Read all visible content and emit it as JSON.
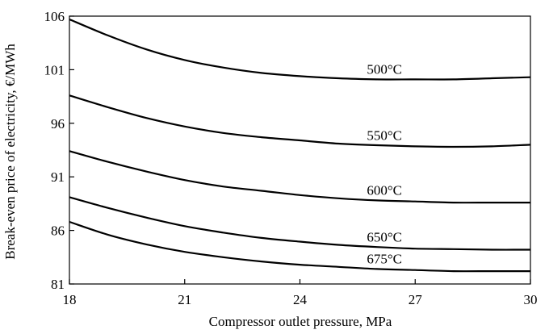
{
  "chart_data": {
    "type": "line",
    "xlabel": "Compressor outlet pressure, MPa",
    "ylabel": "Break-even price of electricity, €/MWh",
    "xlim": [
      18,
      30
    ],
    "ylim": [
      81,
      106
    ],
    "xticks": [
      18,
      21,
      24,
      27,
      30
    ],
    "yticks": [
      81,
      86,
      91,
      96,
      101,
      106
    ],
    "grid": false,
    "series": [
      {
        "name": "500°C",
        "x": [
          18,
          19,
          20,
          21,
          22,
          23,
          24,
          25,
          26,
          27,
          28,
          29,
          30
        ],
        "y": [
          105.7,
          104.2,
          102.9,
          101.9,
          101.2,
          100.7,
          100.4,
          100.2,
          100.1,
          100.1,
          100.1,
          100.2,
          100.3
        ]
      },
      {
        "name": "550°C",
        "x": [
          18,
          19,
          20,
          21,
          22,
          23,
          24,
          25,
          26,
          27,
          28,
          29,
          30
        ],
        "y": [
          98.6,
          97.5,
          96.5,
          95.7,
          95.1,
          94.7,
          94.4,
          94.1,
          93.95,
          93.85,
          93.8,
          93.85,
          94.0
        ]
      },
      {
        "name": "600°C",
        "x": [
          18,
          19,
          20,
          21,
          22,
          23,
          24,
          25,
          26,
          27,
          28,
          29,
          30
        ],
        "y": [
          93.4,
          92.4,
          91.5,
          90.7,
          90.1,
          89.7,
          89.3,
          89.0,
          88.8,
          88.7,
          88.6,
          88.6,
          88.6
        ]
      },
      {
        "name": "650°C",
        "x": [
          18,
          19,
          20,
          21,
          22,
          23,
          24,
          25,
          26,
          27,
          28,
          29,
          30
        ],
        "y": [
          89.1,
          88.1,
          87.2,
          86.4,
          85.8,
          85.3,
          84.95,
          84.65,
          84.45,
          84.3,
          84.25,
          84.2,
          84.2
        ]
      },
      {
        "name": "675°C",
        "x": [
          18,
          19,
          20,
          21,
          22,
          23,
          24,
          25,
          26,
          27,
          28,
          29,
          30
        ],
        "y": [
          86.8,
          85.6,
          84.7,
          84.0,
          83.5,
          83.1,
          82.8,
          82.6,
          82.4,
          82.3,
          82.2,
          82.2,
          82.2
        ]
      }
    ]
  }
}
